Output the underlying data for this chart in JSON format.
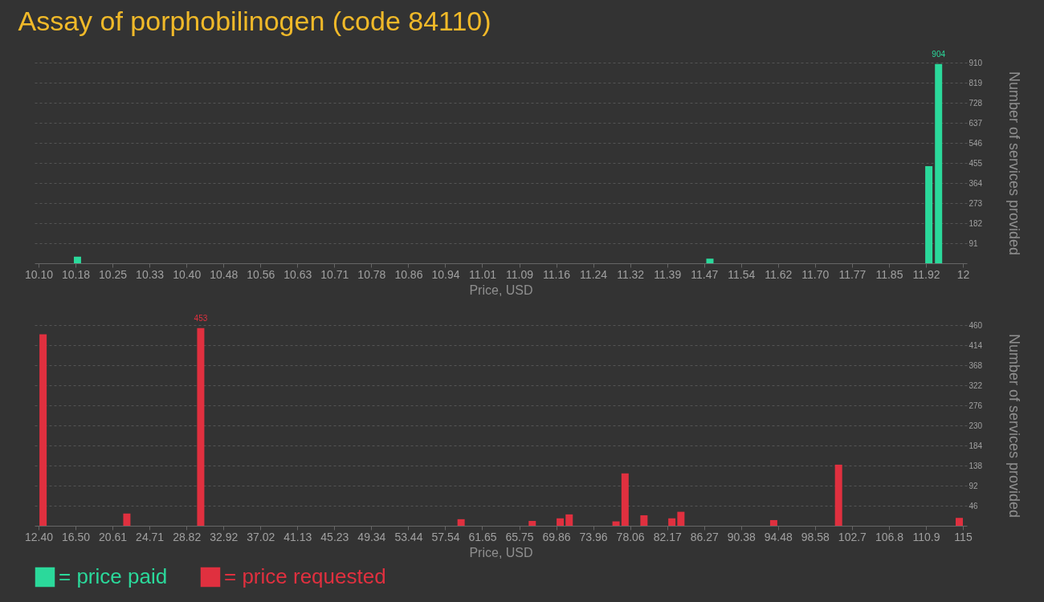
{
  "chart_data": [
    {
      "type": "bar",
      "title": "Assay of porphobilinogen (code 84110)",
      "xlabel": "Price, USD",
      "ylabel": "Number of services provided",
      "xlim": [
        10.1,
        12
      ],
      "ylim": [
        0,
        910
      ],
      "xticks": [
        {
          "value": 10.1,
          "label": "10.10"
        },
        {
          "value": 10.176,
          "label": "10.18"
        },
        {
          "value": 10.252,
          "label": "10.25"
        },
        {
          "value": 10.328,
          "label": "10.33"
        },
        {
          "value": 10.404,
          "label": "10.40"
        },
        {
          "value": 10.48,
          "label": "10.48"
        },
        {
          "value": 10.556,
          "label": "10.56"
        },
        {
          "value": 10.632,
          "label": "10.63"
        },
        {
          "value": 10.708,
          "label": "10.71"
        },
        {
          "value": 10.784,
          "label": "10.78"
        },
        {
          "value": 10.86,
          "label": "10.86"
        },
        {
          "value": 10.936,
          "label": "10.94"
        },
        {
          "value": 11.012,
          "label": "11.01"
        },
        {
          "value": 11.088,
          "label": "11.09"
        },
        {
          "value": 11.164,
          "label": "11.16"
        },
        {
          "value": 11.24,
          "label": "11.24"
        },
        {
          "value": 11.316,
          "label": "11.32"
        },
        {
          "value": 11.392,
          "label": "11.39"
        },
        {
          "value": 11.468,
          "label": "11.47"
        },
        {
          "value": 11.544,
          "label": "11.54"
        },
        {
          "value": 11.62,
          "label": "11.62"
        },
        {
          "value": 11.696,
          "label": "11.70"
        },
        {
          "value": 11.772,
          "label": "11.77"
        },
        {
          "value": 11.848,
          "label": "11.85"
        },
        {
          "value": 11.924,
          "label": "11.92"
        },
        {
          "value": 12,
          "label": "12"
        }
      ],
      "yticks": [
        91,
        182,
        273,
        364,
        455,
        546,
        637,
        728,
        819,
        910
      ],
      "grid": "y",
      "legend": "bottom left",
      "series": [
        {
          "name": "= price paid",
          "color": "#2bd99b",
          "x": [
            10.18,
            11.48,
            11.93,
            11.95
          ],
          "values": [
            30,
            21,
            440,
            904
          ],
          "value_labels": [
            null,
            null,
            null,
            "904"
          ]
        }
      ]
    },
    {
      "type": "bar",
      "xlabel": "Price, USD",
      "ylabel": "Number of services provided",
      "xlim": [
        12.4,
        115
      ],
      "ylim": [
        0,
        460
      ],
      "xticks": [
        {
          "value": 12.4,
          "label": "12.40"
        },
        {
          "value": 16.504,
          "label": "16.50"
        },
        {
          "value": 20.608,
          "label": "20.61"
        },
        {
          "value": 24.712,
          "label": "24.71"
        },
        {
          "value": 28.816,
          "label": "28.82"
        },
        {
          "value": 32.92,
          "label": "32.92"
        },
        {
          "value": 37.024,
          "label": "37.02"
        },
        {
          "value": 41.128,
          "label": "41.13"
        },
        {
          "value": 45.232,
          "label": "45.23"
        },
        {
          "value": 49.336,
          "label": "49.34"
        },
        {
          "value": 53.44,
          "label": "53.44"
        },
        {
          "value": 57.544,
          "label": "57.54"
        },
        {
          "value": 61.648,
          "label": "61.65"
        },
        {
          "value": 65.752,
          "label": "65.75"
        },
        {
          "value": 69.856,
          "label": "69.86"
        },
        {
          "value": 73.96,
          "label": "73.96"
        },
        {
          "value": 78.064,
          "label": "78.06"
        },
        {
          "value": 82.168,
          "label": "82.17"
        },
        {
          "value": 86.272,
          "label": "86.27"
        },
        {
          "value": 90.376,
          "label": "90.38"
        },
        {
          "value": 94.48,
          "label": "94.48"
        },
        {
          "value": 98.584,
          "label": "98.58"
        },
        {
          "value": 102.688,
          "label": "102.7"
        },
        {
          "value": 106.792,
          "label": "106.8"
        },
        {
          "value": 110.896,
          "label": "110.9"
        },
        115
      ],
      "yticks": [
        46,
        92,
        138,
        184,
        230,
        276,
        322,
        368,
        414,
        460
      ],
      "grid": "y",
      "legend": "bottom left",
      "series": [
        {
          "name": "= price requested",
          "color": "#e0303f",
          "x": [
            12.9,
            22.2,
            30.4,
            59.3,
            67.2,
            70.3,
            71.3,
            76.5,
            77.5,
            79.6,
            82.7,
            83.7,
            94,
            101.2,
            114.6
          ],
          "values": [
            439,
            28,
            453,
            15,
            11,
            17,
            26,
            10,
            120,
            24,
            17,
            32,
            13,
            140,
            18
          ],
          "value_labels": [
            null,
            null,
            "453",
            null,
            null,
            null,
            null,
            null,
            null,
            null,
            null,
            null,
            null,
            null,
            null
          ]
        }
      ]
    }
  ]
}
